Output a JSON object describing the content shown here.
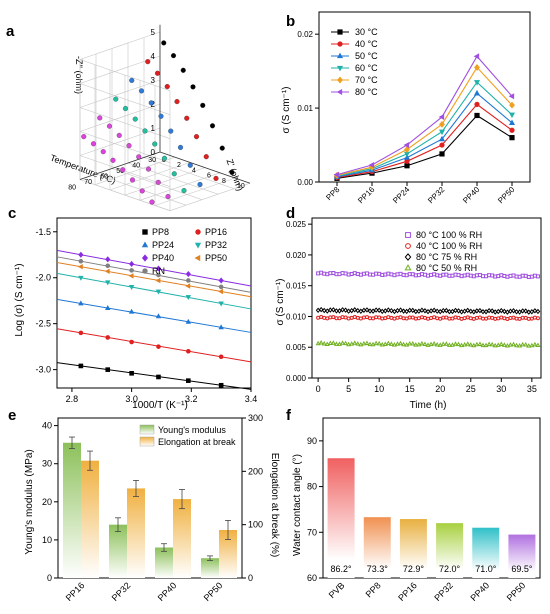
{
  "panels": [
    {
      "letter": "a",
      "type": "scatter3d",
      "z_label": "-Z'' (ohm)",
      "x_label": "Z' (ohm)",
      "y_label": "Temperature (°C)",
      "z_ticks": [
        "0",
        "1",
        "2",
        "3",
        "4",
        "5"
      ],
      "x_ticks": [
        "0",
        "2",
        "4",
        "6",
        "8",
        "10"
      ],
      "y_ticks": [
        "30",
        "40",
        "50",
        "60",
        "70",
        "80"
      ],
      "series_colors": [
        "#000000",
        "#e02020",
        "#2f7bd9",
        "#20c0a0",
        "#d84ad8",
        "#e040e0"
      ]
    },
    {
      "letter": "b",
      "type": "line",
      "ylabel": "σ (S cm⁻¹)",
      "categories": [
        "PP8",
        "PP16",
        "PP24",
        "PP32",
        "PP40",
        "PP50"
      ],
      "ylim": [
        0,
        0.023
      ],
      "yticks": [
        0,
        0.01,
        0.02
      ],
      "ytick_labels": [
        "0.00",
        "0.01",
        "0.02"
      ],
      "legend_position": "top-left",
      "series": [
        {
          "name": "30 °C",
          "color": "#000000",
          "marker": "square",
          "values": [
            0.0005,
            0.0012,
            0.0022,
            0.0038,
            0.009,
            0.006
          ]
        },
        {
          "name": "40 °C",
          "color": "#e02020",
          "marker": "circle",
          "values": [
            0.0006,
            0.0014,
            0.0028,
            0.005,
            0.0105,
            0.007
          ]
        },
        {
          "name": "50 °C",
          "color": "#1f77d4",
          "marker": "triangle-up",
          "values": [
            0.0007,
            0.0016,
            0.0033,
            0.0058,
            0.012,
            0.008
          ]
        },
        {
          "name": "60 °C",
          "color": "#20b2aa",
          "marker": "triangle-down",
          "values": [
            0.0008,
            0.0018,
            0.0038,
            0.0068,
            0.0135,
            0.0091
          ]
        },
        {
          "name": "70 °C",
          "color": "#f0a020",
          "marker": "diamond",
          "values": [
            0.0009,
            0.002,
            0.0044,
            0.0078,
            0.0155,
            0.0104
          ]
        },
        {
          "name": "80 °C",
          "color": "#a050e0",
          "marker": "triangle-left",
          "values": [
            0.001,
            0.0023,
            0.005,
            0.0088,
            0.017,
            0.0116
          ]
        }
      ]
    },
    {
      "letter": "c",
      "type": "scatter",
      "xlabel": "1000/T (K⁻¹)",
      "ylabel": "Log (σ) (S cm⁻¹)",
      "xlim": [
        2.75,
        3.4
      ],
      "ylim": [
        -3.2,
        -1.35
      ],
      "xticks": [
        2.8,
        3.0,
        3.2,
        3.4
      ],
      "xtick_labels": [
        "2.8",
        "3.0",
        "3.2",
        "3.4"
      ],
      "yticks": [
        -3.0,
        -2.5,
        -2.0,
        -1.5
      ],
      "ytick_labels": [
        "-3.0",
        "-2.5",
        "-2.0",
        "-1.5"
      ],
      "x": [
        2.83,
        2.92,
        3.0,
        3.09,
        3.19,
        3.3
      ],
      "legend_position": "top-right",
      "series": [
        {
          "name": "PP8",
          "color": "#000000",
          "marker": "square",
          "values": [
            -2.96,
            -3.0,
            -3.04,
            -3.08,
            -3.12,
            -3.17
          ]
        },
        {
          "name": "PP16",
          "color": "#e02020",
          "marker": "circle",
          "values": [
            -2.6,
            -2.65,
            -2.7,
            -2.75,
            -2.8,
            -2.86
          ]
        },
        {
          "name": "PP24",
          "color": "#1f77d4",
          "marker": "triangle-up",
          "values": [
            -2.28,
            -2.33,
            -2.37,
            -2.42,
            -2.48,
            -2.54
          ]
        },
        {
          "name": "PP32",
          "color": "#20b2aa",
          "marker": "triangle-down",
          "values": [
            -2.0,
            -2.05,
            -2.1,
            -2.15,
            -2.21,
            -2.28
          ]
        },
        {
          "name": "PP40",
          "color": "#8a2be2",
          "marker": "diamond",
          "values": [
            -1.75,
            -1.8,
            -1.85,
            -1.9,
            -1.96,
            -2.03
          ]
        },
        {
          "name": "RN",
          "color": "#808080",
          "marker": "circle",
          "values": [
            -1.82,
            -1.87,
            -1.92,
            -1.97,
            -2.03,
            -2.1
          ]
        },
        {
          "name": "PP50",
          "color": "#e08020",
          "marker": "triangle-left",
          "values": [
            -1.88,
            -1.93,
            -1.98,
            -2.03,
            -2.09,
            -2.15
          ]
        }
      ]
    },
    {
      "letter": "d",
      "type": "scatter",
      "xlabel": "Time (h)",
      "ylabel": "σ (S cm⁻¹)",
      "xlim": [
        -1,
        36.5
      ],
      "ylim": [
        0,
        0.026
      ],
      "xticks": [
        0,
        5,
        10,
        15,
        20,
        25,
        30,
        35
      ],
      "xtick_labels": [
        "0",
        "5",
        "10",
        "15",
        "20",
        "25",
        "30",
        "35"
      ],
      "yticks": [
        0,
        0.005,
        0.01,
        0.015,
        0.02,
        0.025
      ],
      "ytick_labels": [
        "0.000",
        "0.005",
        "0.010",
        "0.015",
        "0.020",
        "0.025"
      ],
      "legend_position": "top-right",
      "series": [
        {
          "name": "80 °C  100 % RH",
          "color": "#a050e0",
          "marker": "open-square",
          "start": 0.017,
          "end": 0.0165
        },
        {
          "name": "40 °C  100 % RH",
          "color": "#e02020",
          "marker": "open-circle",
          "start": 0.0098,
          "end": 0.0097
        },
        {
          "name": "80 °C  75 % RH",
          "color": "#000000",
          "marker": "open-diamond",
          "start": 0.011,
          "end": 0.0108
        },
        {
          "name": "80 °C  50 % RH",
          "color": "#70b020",
          "marker": "open-triangle",
          "start": 0.0056,
          "end": 0.0053
        }
      ]
    },
    {
      "letter": "e",
      "type": "bar",
      "ylabel": "Young's modulus (MPa)",
      "y2label": "Elongation at break (%)",
      "categories": [
        "PP16",
        "PP32",
        "PP40",
        "PP50"
      ],
      "ylim": [
        0,
        42
      ],
      "yticks": [
        0,
        10,
        20,
        30,
        40
      ],
      "ytick_labels": [
        "0",
        "10",
        "20",
        "30",
        "40"
      ],
      "y2lim": [
        0,
        300
      ],
      "y2ticks": [
        0,
        100,
        200,
        300
      ],
      "y2tick_labels": [
        "0",
        "100",
        "200",
        "300"
      ],
      "legend_position": "top-right",
      "series": [
        {
          "name": "Young's modulus",
          "color": "#8cc05a",
          "axis": "left",
          "values": [
            35.5,
            14.0,
            8.0,
            5.2
          ],
          "errors": [
            1.5,
            1.8,
            1.0,
            0.6
          ]
        },
        {
          "name": "Elongation at break",
          "color": "#f0b040",
          "axis": "right",
          "values": [
            220,
            168,
            148,
            90
          ],
          "errors": [
            18,
            15,
            18,
            18
          ]
        }
      ]
    },
    {
      "letter": "f",
      "type": "bar",
      "ylabel": "Water contact angle (°)",
      "categories": [
        "PVB",
        "PP8",
        "PP16",
        "PP32",
        "PP40",
        "PP50"
      ],
      "values": [
        86.2,
        73.3,
        72.9,
        72.0,
        71.0,
        69.5
      ],
      "value_labels": [
        "86.2°",
        "73.3°",
        "72.9°",
        "72.0°",
        "71.0°",
        "69.5°"
      ],
      "colors": [
        "#f06060",
        "#f09050",
        "#e8b040",
        "#a8d040",
        "#30c0c8",
        "#b070e0"
      ],
      "ylim": [
        60,
        95
      ],
      "yticks": [
        60,
        70,
        80,
        90
      ],
      "ytick_labels": [
        "60",
        "70",
        "80",
        "90"
      ]
    }
  ]
}
